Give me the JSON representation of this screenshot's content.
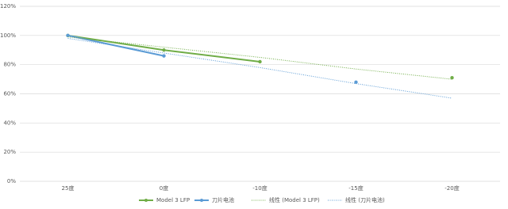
{
  "chart_data": {
    "type": "line",
    "categories": [
      "25度",
      "0度",
      "-10度",
      "-15度",
      "-20度"
    ],
    "series": [
      {
        "name": "Model 3 LFP",
        "color": "#70ad47",
        "style": "solid",
        "values": [
          100,
          90,
          82,
          null,
          71
        ]
      },
      {
        "name": "刀片电池",
        "color": "#5b9bd5",
        "style": "solid",
        "values": [
          100,
          86,
          null,
          68,
          null
        ]
      },
      {
        "name": "线性 (Model 3 LFP)",
        "color": "#70ad47",
        "style": "dotted",
        "values": [
          99,
          92,
          85,
          77,
          70
        ]
      },
      {
        "name": "线性 (刀片电池)",
        "color": "#5b9bd5",
        "style": "dotted",
        "values": [
          98,
          88,
          78,
          67,
          57
        ]
      }
    ],
    "ylim": [
      0,
      120
    ],
    "yticks": [
      {
        "value": 0,
        "label": "0%"
      },
      {
        "value": 20,
        "label": "20%"
      },
      {
        "value": 40,
        "label": "40%"
      },
      {
        "value": 60,
        "label": "60%"
      },
      {
        "value": 80,
        "label": "80%"
      },
      {
        "value": 100,
        "label": "100%"
      },
      {
        "value": 120,
        "label": "120%"
      }
    ],
    "grid": true,
    "legend": "bottom"
  }
}
